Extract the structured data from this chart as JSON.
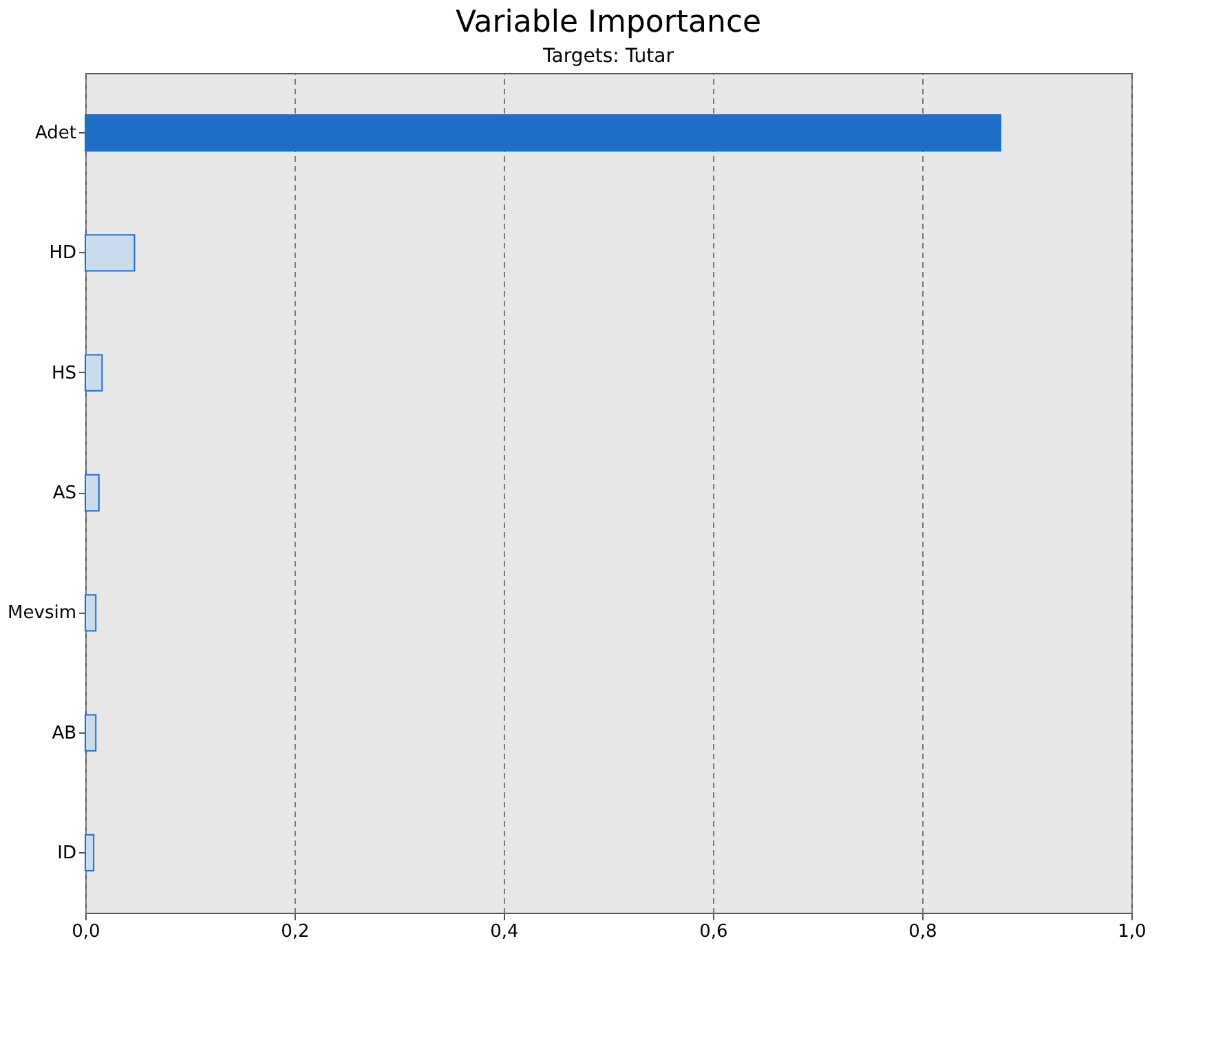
{
  "chart_data": {
    "type": "bar",
    "orientation": "horizontal",
    "title": "Variable Importance",
    "subtitle": "Targets: Tutar",
    "categories": [
      "Adet",
      "HD",
      "HS",
      "AS",
      "Mevsim",
      "AB",
      "ID"
    ],
    "values": [
      0.875,
      0.047,
      0.016,
      0.013,
      0.01,
      0.01,
      0.008
    ],
    "colors": [
      "#1f6fc8",
      "#c9dcee",
      "#c9dcee",
      "#c9dcee",
      "#c9dcee",
      "#c9dcee",
      "#c9dcee"
    ],
    "xlim": [
      0,
      1
    ],
    "xticks": [
      {
        "value": 0,
        "label": "0,0"
      },
      {
        "value": 0.2,
        "label": "0,2"
      },
      {
        "value": 0.4,
        "label": "0,4"
      },
      {
        "value": 0.6,
        "label": "0,6"
      },
      {
        "value": 0.8,
        "label": "0,8"
      },
      {
        "value": 1.0,
        "label": "1,0"
      }
    ],
    "grid": "x"
  }
}
